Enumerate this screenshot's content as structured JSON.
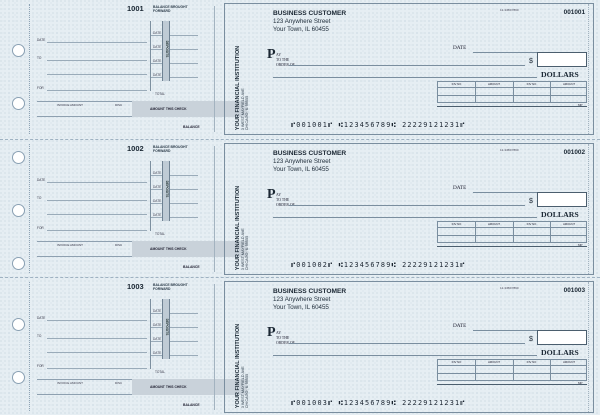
{
  "stub": {
    "balance_brought_forward": "BALANCE BROUGHT FORWARD",
    "date_label": "DATE",
    "to_label": "TO",
    "for_label": "FOR",
    "deposits_label": "DEPOSITS",
    "total_label": "TOTAL",
    "invoice_amount_label": "INVOICE AMOUNT",
    "disc_label": "DISC",
    "amount_this_check": "AMOUNT THIS CHECK",
    "balance_label": "BALANCE"
  },
  "check": {
    "business_name": "BUSINESS CUSTOMER",
    "address_line1": "123 Anywhere Street",
    "address_line2": "Your Town, IL 60455",
    "bank_name": "YOUR FINANCIAL INSTITUTION",
    "bank_addr1": "3 WEST MAYFIELD AVE",
    "bank_addr2": "CHICAGO, IL 55555",
    "fraction_code": "12-3456/7890",
    "date_label": "DATE",
    "pay_letter": "P",
    "pay_label_1": "AY",
    "pay_label_2": "TO THE",
    "pay_label_3": "ORDER OF",
    "dollar_sign": "$",
    "dollars_word": "DOLLARS",
    "inv_no_label": "INV NO",
    "amount_label": "AMOUNT",
    "mp_label": "MP"
  },
  "checks": [
    {
      "number": "1001",
      "check_number": "001001",
      "micr": "⑈001001⑈ ⑆123456789⑆ 22229121231⑈"
    },
    {
      "number": "1002",
      "check_number": "001002",
      "micr": "⑈001002⑈ ⑆123456789⑆ 22229121231⑈"
    },
    {
      "number": "1003",
      "check_number": "001003",
      "micr": "⑈001003⑈ ⑆123456789⑆ 22229121231⑈"
    }
  ],
  "colors": {
    "background": "#e6eef3",
    "border": "#7a8e9f",
    "amount_box_shade": "#c9d2da"
  }
}
